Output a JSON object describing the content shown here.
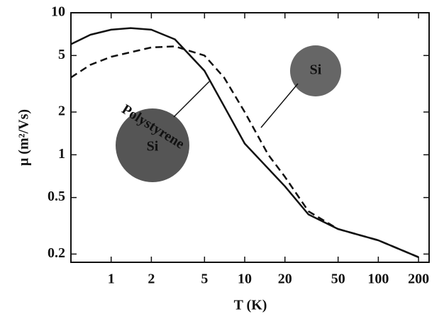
{
  "chart_data": {
    "type": "line",
    "log_x": true,
    "log_y": true,
    "x_label": "T (K)",
    "y_label": "μ (m²/Vs)",
    "xlim": [
      0.5,
      240
    ],
    "ylim": [
      0.175,
      10
    ],
    "xticks": [
      1,
      2,
      5,
      10,
      20,
      50,
      100,
      200
    ],
    "yticks": [
      {
        "value": 0.2,
        "label": "0.2"
      },
      {
        "value": 0.5,
        "label": "0.5"
      },
      1,
      2,
      5,
      10
    ],
    "series": [
      {
        "color": "#111111",
        "dash": false,
        "x": [
          0.5,
          0.7,
          1,
          1.4,
          2,
          3,
          5,
          7,
          10,
          15,
          20,
          30,
          50,
          100,
          200
        ],
        "values": [
          6.0,
          7.0,
          7.6,
          7.8,
          7.6,
          6.5,
          3.9,
          2.2,
          1.2,
          0.8,
          0.6,
          0.38,
          0.3,
          0.25,
          0.19
        ]
      },
      {
        "color": "#111111",
        "dash": true,
        "x": [
          0.5,
          0.7,
          1,
          2,
          3,
          5,
          7,
          10,
          15,
          20,
          30,
          50,
          100,
          200
        ],
        "values": [
          3.5,
          4.3,
          4.9,
          5.7,
          5.8,
          5.0,
          3.5,
          2.0,
          1.0,
          0.7,
          0.4,
          0.3,
          0.25,
          0.19
        ]
      }
    ],
    "annotations": [
      "Si",
      "Polystyrene",
      "Si"
    ]
  }
}
